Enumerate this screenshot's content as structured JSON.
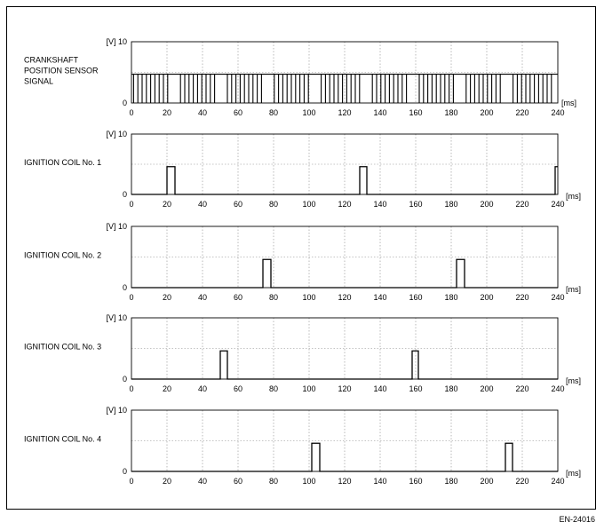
{
  "figure_code": "EN-24016",
  "colors": {
    "line": "#000000",
    "grid": "#8a8a8a",
    "background": "#ffffff"
  },
  "chart_data": [
    {
      "type": "line",
      "label_lines": [
        "CRANKSHAFT",
        "POSITION SENSOR",
        "SIGNAL"
      ],
      "ylabel": "[V]",
      "y_ticks": [
        "0",
        "10"
      ],
      "xlabel": "[ms]",
      "xlabel_position": "beside-axis",
      "ylim": [
        0,
        10
      ],
      "xlim": [
        0,
        240
      ],
      "x_ticks": [
        0,
        20,
        40,
        60,
        80,
        100,
        120,
        140,
        160,
        180,
        200,
        220,
        240
      ],
      "grid": "dotted",
      "signal": "square_wave",
      "high_level": 4.7,
      "tooth_period": 2.4,
      "tooth_low_width": 0.5,
      "missing_tooth_centers": [
        23.5,
        49.5,
        77.5,
        103.5,
        131.5,
        157.5,
        185.5,
        211.5,
        239
      ]
    },
    {
      "type": "line",
      "label_lines": [
        "IGNITION COIL No. 1"
      ],
      "ylabel": "[V]",
      "y_ticks": [
        "0",
        "10"
      ],
      "xlabel": "[ms]",
      "xlabel_position": "below-axis",
      "ylim": [
        0,
        10
      ],
      "xlim": [
        0,
        240
      ],
      "x_ticks": [
        0,
        20,
        40,
        60,
        80,
        100,
        120,
        140,
        160,
        180,
        200,
        220,
        240
      ],
      "grid": "dotted",
      "signal": "pulses",
      "high_level": 4.6,
      "pulses": [
        [
          20,
          24.5
        ],
        [
          128.5,
          132.5
        ],
        [
          238.5,
          240
        ]
      ]
    },
    {
      "type": "line",
      "label_lines": [
        "IGNITION COIL No. 2"
      ],
      "ylabel": "[V]",
      "y_ticks": [
        "0",
        "10"
      ],
      "xlabel": "[ms]",
      "xlabel_position": "below-axis",
      "ylim": [
        0,
        10
      ],
      "xlim": [
        0,
        240
      ],
      "x_ticks": [
        0,
        20,
        40,
        60,
        80,
        100,
        120,
        140,
        160,
        180,
        200,
        220,
        240
      ],
      "grid": "dotted",
      "signal": "pulses",
      "high_level": 4.6,
      "pulses": [
        [
          74,
          78.5
        ],
        [
          183,
          187.5
        ]
      ]
    },
    {
      "type": "line",
      "label_lines": [
        "IGNITION COIL No. 3"
      ],
      "ylabel": "[V]",
      "y_ticks": [
        "0",
        "10"
      ],
      "xlabel": "[ms]",
      "xlabel_position": "below-axis",
      "ylim": [
        0,
        10
      ],
      "xlim": [
        0,
        240
      ],
      "x_ticks": [
        0,
        20,
        40,
        60,
        80,
        100,
        120,
        140,
        160,
        180,
        200,
        220,
        240
      ],
      "grid": "dotted",
      "signal": "pulses",
      "high_level": 4.6,
      "pulses": [
        [
          50,
          54
        ],
        [
          158,
          161.5
        ]
      ]
    },
    {
      "type": "line",
      "label_lines": [
        "IGNITION COIL No. 4"
      ],
      "ylabel": "[V]",
      "y_ticks": [
        "0",
        "10"
      ],
      "xlabel": "[ms]",
      "xlabel_position": "below-axis",
      "ylim": [
        0,
        10
      ],
      "xlim": [
        0,
        240
      ],
      "x_ticks": [
        0,
        20,
        40,
        60,
        80,
        100,
        120,
        140,
        160,
        180,
        200,
        220,
        240
      ],
      "grid": "dotted",
      "signal": "pulses",
      "high_level": 4.6,
      "pulses": [
        [
          101.5,
          106
        ],
        [
          210.5,
          214.5
        ]
      ]
    }
  ]
}
